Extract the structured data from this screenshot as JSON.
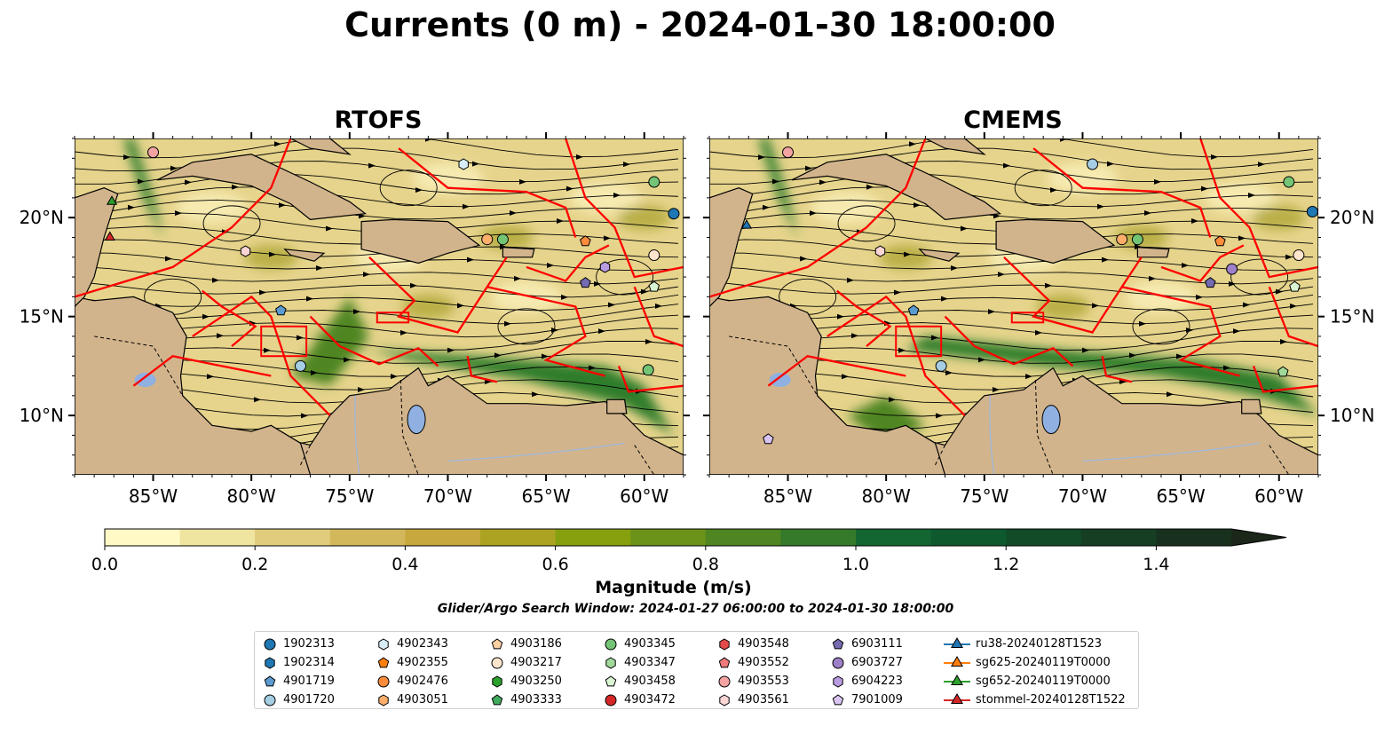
{
  "title": "Currents (0 m) - 2024-01-30 18:00:00",
  "panels": [
    {
      "title": "RTOFS"
    },
    {
      "title": "CMEMS"
    }
  ],
  "map": {
    "lon_ticks": [
      "85°W",
      "80°W",
      "75°W",
      "70°W",
      "65°W",
      "60°W"
    ],
    "lat_ticks": [
      "20°N",
      "15°N",
      "10°N"
    ],
    "extent": {
      "lon": [
        -89,
        -58
      ],
      "lat": [
        7,
        24
      ]
    },
    "colors": {
      "land": "#d2b48c",
      "lake": "#8fb0e0",
      "river": "#a0b8d8",
      "eez": "#ff0000",
      "streamline": "#000000"
    }
  },
  "colorbar": {
    "label": "Magnitude (m/s)",
    "ticks": [
      "0.0",
      "0.2",
      "0.4",
      "0.6",
      "0.8",
      "1.0",
      "1.2",
      "1.4"
    ],
    "range": [
      0,
      1.5
    ],
    "extend": "max",
    "colors": [
      "#fff9c6",
      "#efe4a0",
      "#e0cc7c",
      "#d2b85b",
      "#c6a83c",
      "#aba321",
      "#87a00e",
      "#6b9219",
      "#4f8621",
      "#347a2a",
      "#136632",
      "#0e5a2e",
      "#114b28",
      "#153e23",
      "#18311e",
      "#1b2719"
    ]
  },
  "subtitle": "Glider/Argo Search Window: 2024-01-27 06:00:00 to 2024-01-30 18:00:00",
  "legend": {
    "columns": [
      [
        {
          "label": "1902313",
          "marker": "circle",
          "color": "#1f77b4"
        },
        {
          "label": "1902314",
          "marker": "hexagon",
          "color": "#1f77b4"
        },
        {
          "label": "4901719",
          "marker": "pentagon",
          "color": "#5b9bd0"
        },
        {
          "label": "4901720",
          "marker": "circle",
          "color": "#a6cee3"
        }
      ],
      [
        {
          "label": "4902343",
          "marker": "hexagon",
          "color": "#d6ecf7"
        },
        {
          "label": "4902355",
          "marker": "pentagon",
          "color": "#ff7f0e"
        },
        {
          "label": "4902476",
          "marker": "circle",
          "color": "#fd8d3c"
        },
        {
          "label": "4903051",
          "marker": "hexagon",
          "color": "#fdae6b"
        }
      ],
      [
        {
          "label": "4903186",
          "marker": "pentagon",
          "color": "#fdd0a2"
        },
        {
          "label": "4903217",
          "marker": "circle",
          "color": "#fee6ce"
        },
        {
          "label": "4903250",
          "marker": "hexagon",
          "color": "#2ca02c"
        },
        {
          "label": "4903333",
          "marker": "pentagon",
          "color": "#41ab5d"
        }
      ],
      [
        {
          "label": "4903345",
          "marker": "circle",
          "color": "#74c476"
        },
        {
          "label": "4903347",
          "marker": "hexagon",
          "color": "#a1d99b"
        },
        {
          "label": "4903458",
          "marker": "pentagon",
          "color": "#d9f5d3"
        },
        {
          "label": "4903472",
          "marker": "circle",
          "color": "#d62728"
        }
      ],
      [
        {
          "label": "4903548",
          "marker": "hexagon",
          "color": "#e34a4a"
        },
        {
          "label": "4903552",
          "marker": "pentagon",
          "color": "#f07a7a"
        },
        {
          "label": "4903553",
          "marker": "circle",
          "color": "#f4a3a3"
        },
        {
          "label": "4903561",
          "marker": "hexagon",
          "color": "#fcd5d5"
        }
      ],
      [
        {
          "label": "6903111",
          "marker": "pentagon",
          "color": "#756bb1"
        },
        {
          "label": "6903727",
          "marker": "circle",
          "color": "#9e7fc9"
        },
        {
          "label": "6904223",
          "marker": "hexagon",
          "color": "#b99be0"
        },
        {
          "label": "7901009",
          "marker": "pentagon",
          "color": "#d9c4f2"
        }
      ],
      [
        {
          "label": "ru38-20240128T1523",
          "marker": "triangle-line",
          "color": "#1f77b4"
        },
        {
          "label": "sg625-20240119T0000",
          "marker": "triangle-line",
          "color": "#ff7f0e"
        },
        {
          "label": "sg652-20240119T0000",
          "marker": "triangle-line",
          "color": "#2ca02c"
        },
        {
          "label": "stommel-20240128T1522",
          "marker": "triangle-line",
          "color": "#d62728"
        }
      ]
    ]
  }
}
